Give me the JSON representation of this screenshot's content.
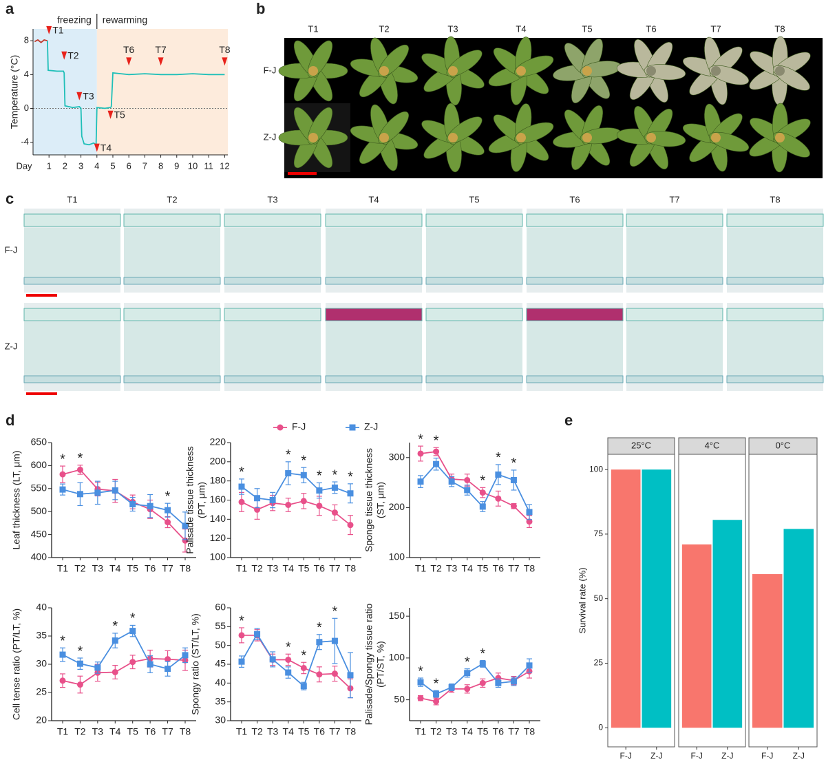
{
  "panels": [
    "a",
    "b",
    "c",
    "d",
    "e"
  ],
  "photos": {
    "b": {
      "columns": [
        "T1",
        "T2",
        "T3",
        "T4",
        "T5",
        "T6",
        "T7",
        "T8"
      ],
      "rows": [
        "F-J",
        "Z-J"
      ]
    },
    "c": {
      "columns": [
        "T1",
        "T2",
        "T3",
        "T4",
        "T5",
        "T6",
        "T7",
        "T8"
      ],
      "rows": [
        "F-J",
        "Z-J"
      ]
    }
  },
  "chart_data": [
    {
      "type": "line",
      "ylabel": "Temperature (°C)",
      "xlabel": "Day",
      "xlim": [
        0,
        12.2
      ],
      "ylim": [
        -5.5,
        9.4
      ],
      "xticks": [
        1,
        2,
        3,
        4,
        5,
        6,
        7,
        8,
        9,
        10,
        11,
        12
      ],
      "yticks": [
        -4,
        0,
        4,
        8
      ],
      "hline": 0,
      "phases": [
        {
          "label": "freezing",
          "from": 0,
          "to": 4,
          "color": "#dcedf8"
        },
        {
          "label": "rewarming",
          "from": 4,
          "to": 12.2,
          "color": "#fdebdc"
        }
      ],
      "series": [
        {
          "color": "#c0392b",
          "x": [
            0.1,
            0.3,
            0.5,
            0.7,
            0.9
          ],
          "values": [
            7.9,
            8.1,
            7.8,
            8.1,
            8.0
          ]
        },
        {
          "color": "#1fbfb8",
          "x": [
            0.9,
            0.95,
            1.5,
            1.9,
            1.95,
            2.0,
            2.5,
            2.9,
            3.0,
            3.05,
            3.2,
            3.5,
            3.8,
            3.95,
            4.0,
            4.5,
            4.85,
            4.9,
            5.0,
            5.5,
            6,
            7,
            8,
            9,
            10,
            11,
            12
          ],
          "values": [
            8.0,
            4.5,
            4.4,
            4.4,
            4.2,
            0.3,
            0.1,
            0.2,
            0,
            -3.3,
            -4.2,
            -4.3,
            -4.1,
            -4.3,
            0.1,
            0,
            0.1,
            0.2,
            4.2,
            4.1,
            4.0,
            4.1,
            4.0,
            4.0,
            4.1,
            4.0,
            4.0
          ]
        }
      ],
      "marker_color": "#e8221b",
      "markers": [
        {
          "label": "T1",
          "x": 1,
          "y": 9.0
        },
        {
          "label": "T2",
          "x": 1.95,
          "y": 6.0
        },
        {
          "label": "T3",
          "x": 2.9,
          "y": 1.2
        },
        {
          "label": "T4",
          "x": 4.0,
          "y": -4.9
        },
        {
          "label": "T5",
          "x": 4.85,
          "y": -1.0
        },
        {
          "label": "T6",
          "x": 6,
          "y": 5.3
        },
        {
          "label": "T7",
          "x": 8,
          "y": 5.3
        },
        {
          "label": "T8",
          "x": 12,
          "y": 5.3
        }
      ]
    },
    {
      "type": "errorline",
      "ylabel": "Leaf thickness (LT, μm)",
      "categories": [
        "T1",
        "T2",
        "T3",
        "T4",
        "T5",
        "T6",
        "T7",
        "T8"
      ],
      "ylim": [
        400,
        650
      ],
      "yticks": [
        400,
        450,
        500,
        550,
        600,
        650
      ],
      "series": [
        {
          "color": "#e8508a",
          "values": [
            581,
            591,
            549,
            545,
            521,
            505,
            477,
            437
          ],
          "errors": [
            18,
            10,
            15,
            25,
            15,
            20,
            12,
            25
          ]
        },
        {
          "color": "#4a8fe0",
          "values": [
            548,
            538,
            541,
            546,
            516,
            512,
            503,
            469
          ],
          "errors": [
            12,
            25,
            25,
            20,
            15,
            25,
            15,
            30
          ]
        }
      ],
      "stars": [
        "*",
        "*",
        null,
        null,
        null,
        null,
        "*",
        null
      ]
    },
    {
      "type": "errorline",
      "ylabel": [
        "Palisade tissue thickness",
        "(PT, μm)"
      ],
      "categories": [
        "T1",
        "T2",
        "T3",
        "T4",
        "T5",
        "T6",
        "T7",
        "T8"
      ],
      "ylim": [
        100,
        220
      ],
      "yticks": [
        100,
        120,
        140,
        160,
        180,
        200,
        220
      ],
      "legend": "top",
      "series": [
        {
          "name": "F-J",
          "color": "#e8508a",
          "values": [
            158,
            150,
            157,
            155,
            159,
            154,
            147,
            134
          ],
          "errors": [
            10,
            10,
            8,
            7,
            8,
            10,
            8,
            10
          ]
        },
        {
          "name": "Z-J",
          "color": "#4a8fe0",
          "values": [
            174,
            162,
            160,
            188,
            186,
            170,
            173,
            167
          ],
          "errors": [
            8,
            10,
            8,
            12,
            8,
            8,
            6,
            10
          ]
        }
      ],
      "stars": [
        "*",
        null,
        null,
        "*",
        "*",
        "*",
        "*",
        "*"
      ]
    },
    {
      "type": "errorline",
      "ylabel": [
        "Sponge tissue thickness",
        "(ST, μm)"
      ],
      "categories": [
        "T1",
        "T2",
        "T3",
        "T4",
        "T5",
        "T6",
        "T7",
        "T8"
      ],
      "ylim": [
        100,
        330
      ],
      "yticks": [
        100,
        200,
        300
      ],
      "series": [
        {
          "color": "#e8508a",
          "values": [
            308,
            312,
            257,
            255,
            230,
            218,
            203,
            172
          ],
          "errors": [
            15,
            8,
            10,
            12,
            10,
            15,
            5,
            12
          ]
        },
        {
          "color": "#4a8fe0",
          "values": [
            252,
            287,
            252,
            235,
            202,
            266,
            255,
            191
          ],
          "errors": [
            12,
            12,
            10,
            10,
            10,
            20,
            20,
            15
          ]
        }
      ],
      "stars": [
        "*",
        "*",
        null,
        null,
        "*",
        "*",
        "*",
        null
      ]
    },
    {
      "type": "errorline",
      "ylabel": "Cell tense ratio (PT/LT, %)",
      "categories": [
        "T1",
        "T2",
        "T3",
        "T4",
        "T5",
        "T6",
        "T7",
        "T8"
      ],
      "ylim": [
        20,
        40
      ],
      "yticks": [
        20,
        25,
        30,
        35,
        40
      ],
      "series": [
        {
          "color": "#e8508a",
          "values": [
            27.1,
            26.4,
            28.5,
            28.6,
            30.4,
            31.0,
            30.9,
            30.7
          ],
          "errors": [
            1.2,
            1.5,
            1.5,
            1.2,
            1.2,
            1.5,
            1.5,
            1.8
          ]
        },
        {
          "color": "#4a8fe0",
          "values": [
            31.7,
            30.1,
            29.4,
            34.2,
            35.9,
            30.0,
            29.2,
            31.6
          ],
          "errors": [
            1.2,
            1.0,
            1.0,
            1.3,
            1.0,
            1.5,
            1.3,
            1.3
          ]
        }
      ],
      "stars": [
        "*",
        "*",
        null,
        "*",
        "*",
        null,
        null,
        null
      ]
    },
    {
      "type": "errorline",
      "ylabel": "Spongy ratio (ST/LT, %)",
      "categories": [
        "T1",
        "T2",
        "T3",
        "T4",
        "T5",
        "T6",
        "T7",
        "T8"
      ],
      "ylim": [
        30,
        60
      ],
      "yticks": [
        30,
        35,
        40,
        45,
        50,
        55,
        60
      ],
      "series": [
        {
          "color": "#e8508a",
          "values": [
            52.7,
            52.7,
            46.2,
            46.2,
            44.0,
            42.3,
            42.5,
            38.6
          ],
          "errors": [
            2,
            1.5,
            1.5,
            1.5,
            1.5,
            2,
            2,
            2.5
          ]
        },
        {
          "color": "#4a8fe0",
          "values": [
            45.7,
            53.0,
            46.3,
            42.8,
            39.2,
            50.9,
            51.2,
            42.1
          ],
          "errors": [
            1.5,
            1.5,
            2,
            1.5,
            1,
            2,
            6,
            6
          ]
        }
      ],
      "stars": [
        "*",
        null,
        null,
        "*",
        "*",
        "*",
        "*",
        null
      ]
    },
    {
      "type": "errorline",
      "ylabel": [
        "Palisade/Spongy tissue ratio",
        "(PT/ST, %)"
      ],
      "categories": [
        "T1",
        "T2",
        "T3",
        "T4",
        "T5",
        "T6",
        "T7",
        "T8"
      ],
      "ylim": [
        25,
        160
      ],
      "yticks": [
        50,
        100,
        150
      ],
      "series": [
        {
          "color": "#e8508a",
          "values": [
            52,
            48,
            63,
            63,
            70,
            76,
            73,
            84
          ],
          "errors": [
            3,
            4,
            4,
            5,
            5,
            6,
            5,
            8
          ]
        },
        {
          "color": "#4a8fe0",
          "values": [
            71,
            57,
            65,
            82,
            93,
            70,
            72,
            91
          ],
          "errors": [
            5,
            4,
            4,
            5,
            4,
            5,
            5,
            8
          ]
        }
      ],
      "stars": [
        "*",
        "*",
        null,
        "*",
        "*",
        null,
        null,
        null
      ]
    },
    {
      "type": "facet_bar",
      "ylabel": "Survival rate (%)",
      "ylim": [
        -7.4,
        105.9
      ],
      "yticks": [
        0,
        25,
        50,
        75,
        100
      ],
      "colors": [
        "#f8766d",
        "#00bfc4"
      ],
      "facets": [
        {
          "label": "25°C",
          "categories": [
            "F-J",
            "Z-J"
          ],
          "values": [
            100,
            100
          ]
        },
        {
          "label": "4°C",
          "categories": [
            "F-J",
            "Z-J"
          ],
          "values": [
            71,
            80.5
          ]
        },
        {
          "label": "0°C",
          "categories": [
            "F-J",
            "Z-J"
          ],
          "values": [
            59.5,
            77
          ]
        }
      ]
    }
  ]
}
